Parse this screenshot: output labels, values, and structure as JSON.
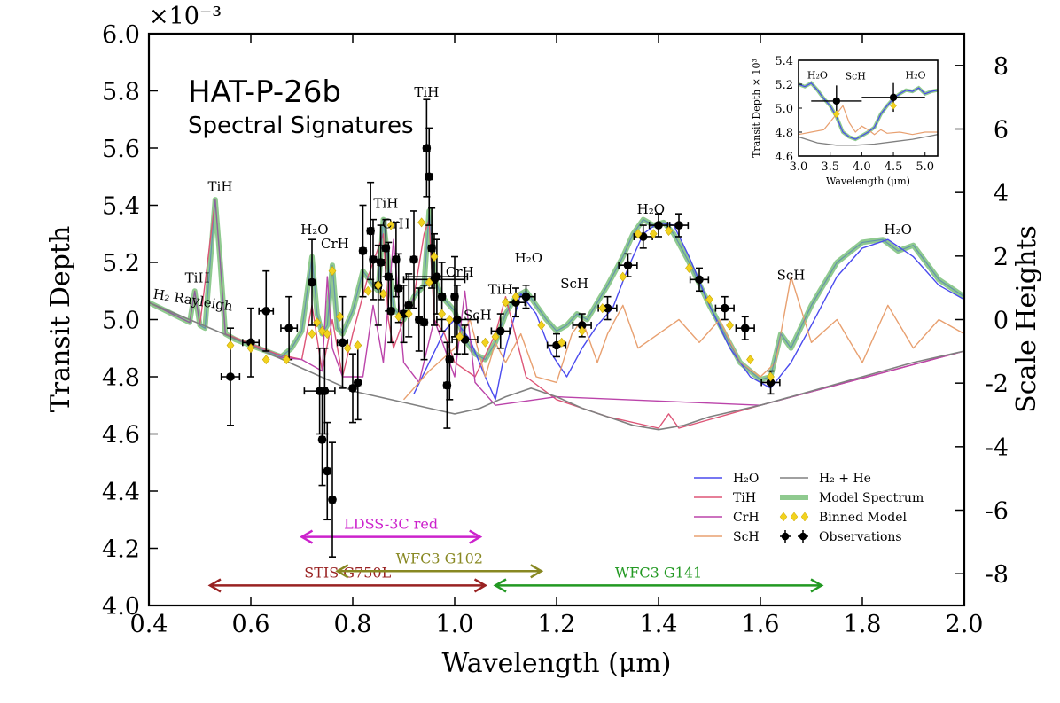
{
  "chart_data": {
    "type": "line",
    "title": "HAT-P-26b",
    "subtitle": "Spectral Signatures",
    "xlabel": "Wavelength (μm)",
    "ylabel": "Transit Depth",
    "ylabel_right": "Scale Heights",
    "y_multiplier": "×10⁻³",
    "xlim": [
      0.4,
      2.0
    ],
    "ylim": [
      4.0,
      6.0
    ],
    "ylim_right": [
      -9,
      9.0
    ],
    "xticks": [
      "0.4",
      "0.6",
      "0.8",
      "1.0",
      "1.2",
      "1.4",
      "1.6",
      "1.8",
      "2.0"
    ],
    "yticks": [
      "4.0",
      "4.2",
      "4.4",
      "4.6",
      "4.8",
      "5.0",
      "5.2",
      "5.4",
      "5.6",
      "5.8",
      "6.0"
    ],
    "yticks_right": [
      "-8",
      "-6",
      "-4",
      "-2",
      "0",
      "2",
      "4",
      "6",
      "8"
    ],
    "legend": [
      {
        "label": "H₂O",
        "color": "#4a4aee",
        "kind": "line"
      },
      {
        "label": "TiH",
        "color": "#dd5577",
        "kind": "line"
      },
      {
        "label": "CrH",
        "color": "#bb44aa",
        "kind": "line"
      },
      {
        "label": "ScH",
        "color": "#e8a070",
        "kind": "line"
      },
      {
        "label": "H₂ + He",
        "color": "#808080",
        "kind": "line"
      },
      {
        "label": "Model Spectrum",
        "color": "#8fca8f",
        "kind": "thick"
      },
      {
        "label": "Binned Model",
        "color": "#f2d21e",
        "kind": "diamond"
      },
      {
        "label": "Observations",
        "color": "#000000",
        "kind": "errorbar"
      }
    ],
    "annotations": [
      {
        "text": "H₂ Rayleigh",
        "x": 0.48,
        "y": 5.05
      },
      {
        "text": "TiH",
        "x": 0.495,
        "y": 5.13
      },
      {
        "text": "TiH",
        "x": 0.54,
        "y": 5.45
      },
      {
        "text": "H₂O",
        "x": 0.725,
        "y": 5.3
      },
      {
        "text": "CrH",
        "x": 0.765,
        "y": 5.25
      },
      {
        "text": "TiH",
        "x": 0.865,
        "y": 5.39
      },
      {
        "text": "CrH",
        "x": 0.885,
        "y": 5.32
      },
      {
        "text": "TiH",
        "x": 0.945,
        "y": 5.78
      },
      {
        "text": "CrH",
        "x": 1.01,
        "y": 5.15
      },
      {
        "text": "ScH",
        "x": 1.045,
        "y": 5.0
      },
      {
        "text": "TiH",
        "x": 1.09,
        "y": 5.09
      },
      {
        "text": "H₂O",
        "x": 1.145,
        "y": 5.2
      },
      {
        "text": "ScH",
        "x": 1.235,
        "y": 5.11
      },
      {
        "text": "H₂O",
        "x": 1.385,
        "y": 5.37
      },
      {
        "text": "ScH",
        "x": 1.66,
        "y": 5.14
      },
      {
        "text": "H₂O",
        "x": 1.87,
        "y": 5.3
      }
    ],
    "instruments": [
      {
        "name": "LDSS-3C red",
        "x0": 0.7,
        "x1": 1.05,
        "y": 4.24,
        "color": "#cc22cc"
      },
      {
        "name": "STIS G750L",
        "x0": 0.52,
        "x1": 1.06,
        "y": 4.07,
        "color": "#992222"
      },
      {
        "name": "WFC3 G102",
        "x0": 0.77,
        "x1": 1.17,
        "y": 4.12,
        "color": "#888822"
      },
      {
        "name": "WFC3 G141",
        "x0": 1.08,
        "x1": 1.72,
        "y": 4.07,
        "color": "#229922"
      }
    ],
    "baseline": {
      "name": "H₂ + He",
      "x": [
        0.4,
        0.6,
        0.8,
        0.9,
        0.95,
        1.0,
        1.05,
        1.1,
        1.15,
        1.2,
        1.25,
        1.3,
        1.35,
        1.4,
        1.45,
        1.5,
        1.6,
        1.7,
        1.8,
        1.9,
        2.0
      ],
      "y": [
        5.06,
        4.91,
        4.75,
        4.71,
        4.69,
        4.67,
        4.69,
        4.73,
        4.76,
        4.73,
        4.69,
        4.66,
        4.63,
        4.615,
        4.63,
        4.66,
        4.7,
        4.75,
        4.8,
        4.85,
        4.89
      ]
    },
    "model": {
      "name": "Model Spectrum",
      "x": [
        0.4,
        0.48,
        0.49,
        0.5,
        0.51,
        0.53,
        0.54,
        0.55,
        0.57,
        0.6,
        0.63,
        0.66,
        0.68,
        0.7,
        0.72,
        0.73,
        0.74,
        0.75,
        0.76,
        0.77,
        0.78,
        0.8,
        0.82,
        0.84,
        0.85,
        0.86,
        0.87,
        0.88,
        0.9,
        0.92,
        0.94,
        0.95,
        0.96,
        0.97,
        0.98,
        1.0,
        1.02,
        1.04,
        1.06,
        1.08,
        1.1,
        1.12,
        1.14,
        1.16,
        1.18,
        1.2,
        1.22,
        1.24,
        1.26,
        1.28,
        1.3,
        1.33,
        1.35,
        1.37,
        1.39,
        1.41,
        1.43,
        1.46,
        1.5,
        1.53,
        1.56,
        1.6,
        1.62,
        1.64,
        1.66,
        1.7,
        1.75,
        1.8,
        1.84,
        1.87,
        1.9,
        1.95,
        2.0
      ],
      "y": [
        5.06,
        4.99,
        5.1,
        4.98,
        4.97,
        5.42,
        5.2,
        4.95,
        4.93,
        4.91,
        4.89,
        4.87,
        4.9,
        4.96,
        5.22,
        5.02,
        4.95,
        4.98,
        5.19,
        4.97,
        4.95,
        5.03,
        5.17,
        5.12,
        5.1,
        5.35,
        5.2,
        5.04,
        5.0,
        5.08,
        5.12,
        5.38,
        5.15,
        5.1,
        5.07,
        5.03,
        4.93,
        4.88,
        4.86,
        4.92,
        5.02,
        5.08,
        5.1,
        5.05,
        5.0,
        4.96,
        4.98,
        5.02,
        5.0,
        5.06,
        5.12,
        5.22,
        5.3,
        5.35,
        5.33,
        5.34,
        5.3,
        5.2,
        5.05,
        4.95,
        4.85,
        4.79,
        4.8,
        4.95,
        4.9,
        5.05,
        5.2,
        5.27,
        5.28,
        5.24,
        5.26,
        5.14,
        5.08
      ]
    },
    "components": [
      {
        "name": "H₂O",
        "x": [
          0.92,
          0.95,
          0.98,
          1.0,
          1.03,
          1.06,
          1.08,
          1.1,
          1.13,
          1.16,
          1.19,
          1.22,
          1.25,
          1.28,
          1.31,
          1.34,
          1.37,
          1.4,
          1.43,
          1.46,
          1.5,
          1.54,
          1.58,
          1.62,
          1.66,
          1.7,
          1.75,
          1.8,
          1.85,
          1.9,
          1.95,
          2.0
        ],
        "y": [
          4.74,
          4.85,
          4.96,
          5.0,
          4.93,
          4.8,
          4.72,
          4.9,
          5.09,
          5.02,
          4.88,
          4.8,
          4.9,
          4.98,
          5.04,
          5.18,
          5.3,
          5.34,
          5.33,
          5.22,
          5.05,
          4.9,
          4.8,
          4.76,
          4.85,
          4.98,
          5.15,
          5.25,
          5.28,
          5.22,
          5.12,
          5.07
        ]
      },
      {
        "name": "TiH",
        "x": [
          0.4,
          0.48,
          0.49,
          0.5,
          0.53,
          0.54,
          0.55,
          0.65,
          0.7,
          0.72,
          0.74,
          0.76,
          0.78,
          0.8,
          0.83,
          0.86,
          0.87,
          0.88,
          0.9,
          0.92,
          0.94,
          0.95,
          0.96,
          0.98,
          1.0,
          1.04,
          1.08,
          1.1,
          1.14,
          1.2,
          1.3,
          1.4,
          1.42,
          1.44,
          1.6,
          2.0
        ],
        "y": [
          5.06,
          4.99,
          5.1,
          4.98,
          5.42,
          5.2,
          4.95,
          4.88,
          4.86,
          5.05,
          4.82,
          5.0,
          4.8,
          4.95,
          5.15,
          5.3,
          5.0,
          4.9,
          5.0,
          5.08,
          5.3,
          5.35,
          5.0,
          4.95,
          4.85,
          4.8,
          4.95,
          5.08,
          4.8,
          4.72,
          4.66,
          4.62,
          4.67,
          4.62,
          4.7,
          4.89
        ]
      },
      {
        "name": "CrH",
        "x": [
          0.65,
          0.7,
          0.74,
          0.75,
          0.76,
          0.78,
          0.82,
          0.84,
          0.86,
          0.88,
          0.9,
          0.93,
          0.96,
          0.98,
          1.0,
          1.02,
          1.04,
          1.08,
          1.2,
          1.6,
          2.0
        ],
        "y": [
          4.87,
          4.86,
          4.82,
          5.15,
          4.9,
          4.8,
          4.8,
          5.05,
          4.85,
          5.28,
          4.85,
          4.78,
          5.0,
          4.9,
          4.8,
          5.1,
          4.78,
          4.7,
          4.73,
          4.7,
          4.89
        ]
      },
      {
        "name": "ScH",
        "x": [
          0.9,
          0.95,
          1.0,
          1.03,
          1.06,
          1.08,
          1.1,
          1.13,
          1.16,
          1.2,
          1.23,
          1.25,
          1.28,
          1.3,
          1.33,
          1.36,
          1.4,
          1.44,
          1.48,
          1.52,
          1.56,
          1.6,
          1.63,
          1.66,
          1.7,
          1.75,
          1.8,
          1.85,
          1.9,
          1.95,
          2.0
        ],
        "y": [
          4.72,
          4.82,
          4.9,
          5.0,
          4.8,
          4.92,
          4.85,
          4.95,
          4.8,
          4.78,
          4.95,
          5.0,
          4.85,
          4.95,
          5.05,
          4.9,
          4.95,
          5.0,
          4.92,
          5.0,
          4.85,
          4.8,
          4.85,
          5.15,
          4.92,
          5.0,
          4.85,
          5.05,
          4.9,
          5.0,
          4.95
        ]
      }
    ],
    "binned_model": {
      "x": [
        0.56,
        0.6,
        0.63,
        0.67,
        0.72,
        0.73,
        0.74,
        0.75,
        0.76,
        0.775,
        0.79,
        0.81,
        0.83,
        0.85,
        0.86,
        0.875,
        0.89,
        0.91,
        0.935,
        0.95,
        0.96,
        0.975,
        0.99,
        1.01,
        1.06,
        1.08,
        1.1,
        1.12,
        1.17,
        1.21,
        1.25,
        1.29,
        1.33,
        1.36,
        1.39,
        1.42,
        1.46,
        1.5,
        1.54,
        1.58,
        1.62
      ],
      "y": [
        4.91,
        4.9,
        4.86,
        4.86,
        4.95,
        4.99,
        4.96,
        4.95,
        5.17,
        5.01,
        4.9,
        4.91,
        5.1,
        5.12,
        5.09,
        5.33,
        5.01,
        5.02,
        5.34,
        5.13,
        5.22,
        5.02,
        5.0,
        4.94,
        4.92,
        4.94,
        5.06,
        5.08,
        4.98,
        4.92,
        4.96,
        5.04,
        5.15,
        5.3,
        5.3,
        5.31,
        5.18,
        5.07,
        4.98,
        4.86,
        4.8
      ]
    },
    "observations": {
      "x": [
        0.56,
        0.6,
        0.63,
        0.675,
        0.72,
        0.735,
        0.74,
        0.745,
        0.75,
        0.76,
        0.78,
        0.8,
        0.81,
        0.82,
        0.835,
        0.84,
        0.85,
        0.855,
        0.865,
        0.87,
        0.875,
        0.885,
        0.89,
        0.9,
        0.91,
        0.92,
        0.93,
        0.94,
        0.945,
        0.95,
        0.955,
        0.96,
        0.965,
        0.975,
        0.985,
        0.99,
        1.0,
        1.005,
        1.02,
        1.09,
        1.12,
        1.14,
        1.2,
        1.25,
        1.3,
        1.34,
        1.37,
        1.4,
        1.44,
        1.48,
        1.53,
        1.57,
        1.62
      ],
      "y": [
        4.8,
        4.92,
        5.03,
        4.97,
        5.13,
        4.75,
        4.58,
        4.75,
        4.47,
        4.37,
        4.92,
        4.76,
        4.78,
        5.24,
        5.31,
        5.21,
        5.12,
        5.2,
        5.25,
        5.15,
        5.03,
        5.21,
        5.11,
        5.02,
        5.05,
        5.21,
        5.0,
        4.99,
        5.6,
        5.5,
        5.25,
        5.14,
        5.15,
        5.08,
        4.77,
        4.86,
        5.08,
        5.0,
        4.93,
        4.96,
        5.06,
        5.08,
        4.91,
        4.98,
        5.04,
        5.19,
        5.29,
        5.33,
        5.33,
        5.14,
        5.04,
        4.97,
        4.78
      ],
      "yerr": [
        0.17,
        0.12,
        0.14,
        0.11,
        0.15,
        0.15,
        0.16,
        0.15,
        0.17,
        0.2,
        0.16,
        0.12,
        0.13,
        0.16,
        0.17,
        0.14,
        0.14,
        0.13,
        0.1,
        0.12,
        0.11,
        0.13,
        0.12,
        0.1,
        0.11,
        0.17,
        0.11,
        0.13,
        0.17,
        0.17,
        0.14,
        0.16,
        0.13,
        0.12,
        0.15,
        0.14,
        0.14,
        0.12,
        0.05,
        0.06,
        0.05,
        0.04,
        0.04,
        0.04,
        0.04,
        0.04,
        0.04,
        0.04,
        0.04,
        0.04,
        0.04,
        0.04,
        0.04
      ],
      "xerr": [
        0.018,
        0.016,
        0.014,
        0.016,
        0.005,
        0.03,
        0.005,
        0.005,
        0.005,
        0.005,
        0.01,
        0.005,
        0.005,
        0.006,
        0.006,
        0.006,
        0.006,
        0.006,
        0.006,
        0.006,
        0.006,
        0.006,
        0.006,
        0.006,
        0.006,
        0.006,
        0.006,
        0.006,
        0.006,
        0.006,
        0.006,
        0.06,
        0.06,
        0.006,
        0.006,
        0.006,
        0.006,
        0.04,
        0.025,
        0.018,
        0.018,
        0.018,
        0.018,
        0.018,
        0.018,
        0.018,
        0.018,
        0.018,
        0.018,
        0.018,
        0.018,
        0.018,
        0.018
      ]
    },
    "inset": {
      "xlabel": "Wavelength (μm)",
      "ylabel": "Transit Depth × 10³",
      "xlim": [
        3.0,
        5.2
      ],
      "ylim": [
        4.6,
        5.4
      ],
      "xticks": [
        "3.0",
        "3.5",
        "4.0",
        "4.5",
        "5.0"
      ],
      "yticks": [
        "4.6",
        "4.8",
        "5.0",
        "5.2",
        "5.4"
      ],
      "labels": [
        {
          "text": "H₂O",
          "x": 3.3,
          "y": 5.25
        },
        {
          "text": "ScH",
          "x": 3.9,
          "y": 5.24
        },
        {
          "text": "H₂O",
          "x": 4.85,
          "y": 5.25
        }
      ],
      "h2o": {
        "x": [
          3.0,
          3.1,
          3.2,
          3.3,
          3.4,
          3.5,
          3.6,
          3.7,
          3.8,
          3.9,
          4.0,
          4.1,
          4.2,
          4.3,
          4.4,
          4.5,
          4.6,
          4.7,
          4.8,
          4.9,
          5.0,
          5.1,
          5.2
        ],
        "y": [
          5.2,
          5.18,
          5.21,
          5.15,
          5.08,
          5.02,
          4.93,
          4.8,
          4.76,
          4.74,
          4.77,
          4.8,
          4.84,
          4.95,
          5.02,
          5.08,
          5.12,
          5.15,
          5.14,
          5.17,
          5.12,
          5.14,
          5.15
        ]
      },
      "sch": {
        "x": [
          3.0,
          3.2,
          3.4,
          3.6,
          3.7,
          3.8,
          3.9,
          4.0,
          4.1,
          4.2,
          4.3,
          4.4,
          4.6,
          4.8,
          5.0,
          5.2
        ],
        "y": [
          4.78,
          4.8,
          4.82,
          4.95,
          5.02,
          4.88,
          4.8,
          4.85,
          4.82,
          4.78,
          4.82,
          4.79,
          4.8,
          4.78,
          4.8,
          4.8
        ]
      },
      "baseline": {
        "x": [
          3.0,
          3.3,
          3.6,
          3.9,
          4.2,
          4.5,
          4.8,
          5.1,
          5.2
        ],
        "y": [
          4.76,
          4.71,
          4.69,
          4.69,
          4.7,
          4.72,
          4.74,
          4.77,
          4.78
        ]
      },
      "binned": {
        "x": [
          3.6,
          4.5
        ],
        "y": [
          4.95,
          5.02
        ]
      },
      "observations": [
        {
          "x": 3.6,
          "y": 5.06,
          "xerr": 0.4,
          "yerr": 0.13
        },
        {
          "x": 4.5,
          "y": 5.09,
          "xerr": 0.5,
          "yerr": 0.12
        }
      ]
    }
  }
}
